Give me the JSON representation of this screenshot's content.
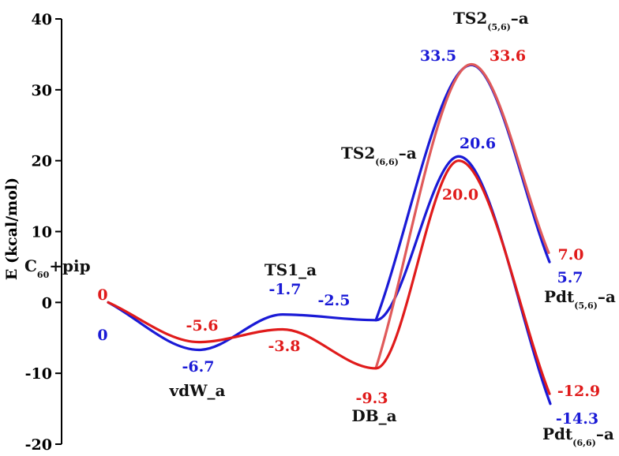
{
  "chart_data": {
    "type": "line",
    "ylabel": "E (kcal/mol)",
    "ylim": [
      -20,
      40
    ],
    "yticks": [
      -20,
      -10,
      0,
      10,
      20,
      30,
      40
    ],
    "grid": false,
    "colors": {
      "blue": "#1a1ad6",
      "red": "#e01b1b",
      "red_upper": "#e05a5a",
      "label": "#111111",
      "axis": "#000000"
    },
    "states": [
      {
        "id": "c60pip",
        "name_main": "C",
        "name_sub": "60",
        "name_tail": "+pip"
      },
      {
        "id": "vdw",
        "name_main": "vdW_a"
      },
      {
        "id": "ts1",
        "name_main": "TS1_a"
      },
      {
        "id": "db",
        "name_main": "DB_a"
      },
      {
        "id": "ts2_66",
        "name_main": "TS2",
        "name_sub": "(6,6)",
        "name_tail": "–a"
      },
      {
        "id": "ts2_56",
        "name_main": "TS2",
        "name_sub": "(5,6)",
        "name_tail": "–a"
      },
      {
        "id": "pdt_56",
        "name_main": "Pdt",
        "name_sub": "(5,6)",
        "name_tail": "–a"
      },
      {
        "id": "pdt_66",
        "name_main": "Pdt",
        "name_sub": "(6,6)",
        "name_tail": "–a"
      }
    ],
    "series": [
      {
        "color": "blue",
        "path_a": [
          "c60pip",
          "vdw",
          "ts1",
          "db",
          "ts2_66",
          "pdt_66"
        ],
        "path_b": [
          "db",
          "ts2_56",
          "pdt_56"
        ],
        "values": {
          "c60pip": 0,
          "vdw": -6.7,
          "ts1": -1.7,
          "db": -2.5,
          "ts2_66": 20.6,
          "ts2_56": 33.5,
          "pdt_56": 5.7,
          "pdt_66": -14.3
        },
        "labels": {
          "c60pip": "0",
          "vdw": "-6.7",
          "ts1": "-1.7",
          "db": "-2.5",
          "ts2_66": "20.6",
          "ts2_56": "33.5",
          "pdt_56": "5.7",
          "pdt_66": "-14.3"
        }
      },
      {
        "color": "red",
        "path_a": [
          "c60pip",
          "vdw",
          "ts1",
          "db",
          "ts2_66",
          "pdt_66"
        ],
        "path_b": [
          "db",
          "ts2_56",
          "pdt_56"
        ],
        "values": {
          "c60pip": 0,
          "vdw": -5.6,
          "ts1": -3.8,
          "db": -9.3,
          "ts2_66": 20.0,
          "ts2_56": 33.6,
          "pdt_56": 7.0,
          "pdt_66": -12.9
        },
        "labels": {
          "c60pip": "0",
          "vdw": "-5.6",
          "ts1": "-3.8",
          "db": "-9.3",
          "ts2_66": "20.0",
          "ts2_56": "33.6",
          "pdt_56": "7.0",
          "pdt_66": "-12.9"
        }
      }
    ]
  }
}
